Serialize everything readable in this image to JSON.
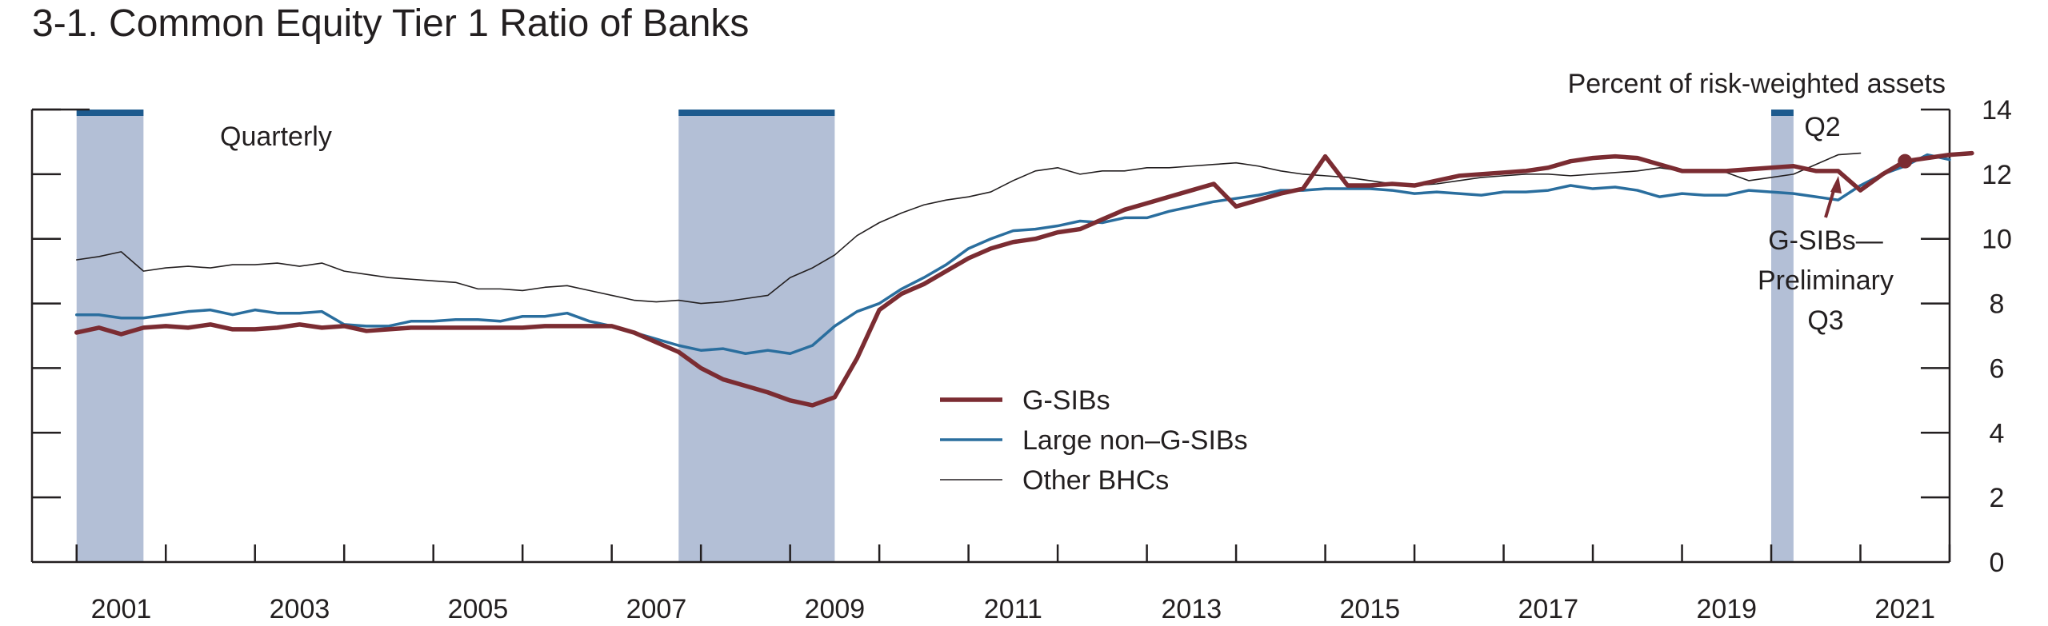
{
  "chart_data": {
    "type": "line",
    "title": "3-1. Common Equity Tier 1 Ratio of Banks",
    "frequency_label": "Quarterly",
    "ylabel": "Percent of risk-weighted assets",
    "ylim": [
      0,
      14
    ],
    "y_ticks": [
      "0",
      "2",
      "4",
      "6",
      "8",
      "10",
      "12",
      "14"
    ],
    "x_ticks": [
      "2001",
      "2003",
      "2005",
      "2007",
      "2009",
      "2011",
      "2013",
      "2015",
      "2017",
      "2019",
      "2021"
    ],
    "grid": false,
    "legend_placement": "center-bottom",
    "recessions": [
      {
        "start": 2001.0,
        "end": 2001.75
      },
      {
        "start": 2007.75,
        "end": 2009.5
      },
      {
        "start": 2020.0,
        "end": 2020.25
      }
    ],
    "colors": {
      "g_sibs": "#7b2c32",
      "large": "#2a6e9e",
      "other": "#231f20",
      "recession": "#b3bfd6",
      "recession_bar": "#1d5a8e"
    },
    "series": [
      {
        "name": "G-SIBs",
        "x_start": 2001.0,
        "x_step": 0.25,
        "values": [
          7.1,
          7.25,
          7.05,
          7.25,
          7.3,
          7.25,
          7.35,
          7.2,
          7.2,
          7.25,
          7.35,
          7.25,
          7.3,
          7.15,
          7.2,
          7.25,
          7.25,
          7.25,
          7.25,
          7.25,
          7.25,
          7.3,
          7.3,
          7.3,
          7.3,
          7.1,
          6.8,
          6.5,
          6.0,
          5.65,
          5.45,
          5.25,
          5.0,
          4.85,
          5.1,
          6.3,
          7.8,
          8.3,
          8.6,
          9.0,
          9.4,
          9.7,
          9.9,
          10.0,
          10.2,
          10.3,
          10.6,
          10.9,
          11.1,
          11.3,
          11.5,
          11.7,
          11.0,
          11.2,
          11.4,
          11.55,
          12.55,
          11.65,
          11.65,
          11.7,
          11.65,
          11.8,
          11.95,
          12.0,
          12.05,
          12.1,
          12.2,
          12.4,
          12.5,
          12.55,
          12.5,
          12.3,
          12.1,
          12.1,
          12.1,
          12.15,
          12.2,
          12.25,
          12.1,
          12.1,
          11.5,
          12.0,
          12.4,
          12.5,
          12.6,
          12.65
        ],
        "annotation": "Q2"
      },
      {
        "name": "Large non–G-SIBs",
        "x_start": 2001.0,
        "x_step": 0.25,
        "values": [
          7.65,
          7.65,
          7.55,
          7.55,
          7.65,
          7.75,
          7.8,
          7.65,
          7.8,
          7.7,
          7.7,
          7.75,
          7.35,
          7.3,
          7.3,
          7.45,
          7.45,
          7.5,
          7.5,
          7.45,
          7.6,
          7.6,
          7.7,
          7.45,
          7.3,
          7.1,
          6.9,
          6.7,
          6.55,
          6.6,
          6.45,
          6.55,
          6.45,
          6.7,
          7.3,
          7.75,
          8.0,
          8.45,
          8.8,
          9.2,
          9.7,
          10.0,
          10.25,
          10.3,
          10.4,
          10.55,
          10.5,
          10.65,
          10.65,
          10.85,
          11.0,
          11.15,
          11.25,
          11.35,
          11.5,
          11.5,
          11.55,
          11.55,
          11.55,
          11.5,
          11.4,
          11.45,
          11.4,
          11.35,
          11.45,
          11.45,
          11.5,
          11.65,
          11.55,
          11.6,
          11.5,
          11.3,
          11.4,
          11.35,
          11.35,
          11.5,
          11.45,
          11.4,
          11.3,
          11.2,
          11.65,
          12.0,
          12.25,
          12.6,
          12.45
        ]
      },
      {
        "name": "Other BHCs",
        "x_start": 2001.0,
        "x_step": 0.25,
        "values": [
          9.35,
          9.45,
          9.6,
          9.0,
          9.1,
          9.15,
          9.1,
          9.2,
          9.2,
          9.25,
          9.15,
          9.25,
          9.0,
          8.9,
          8.8,
          8.75,
          8.7,
          8.65,
          8.45,
          8.45,
          8.4,
          8.5,
          8.55,
          8.4,
          8.25,
          8.1,
          8.05,
          8.1,
          8.0,
          8.05,
          8.15,
          8.25,
          8.8,
          9.1,
          9.5,
          10.1,
          10.5,
          10.8,
          11.05,
          11.2,
          11.3,
          11.45,
          11.8,
          12.1,
          12.2,
          12.0,
          12.1,
          12.1,
          12.2,
          12.2,
          12.25,
          12.3,
          12.35,
          12.25,
          12.1,
          12.0,
          11.95,
          11.9,
          11.8,
          11.7,
          11.65,
          11.7,
          11.8,
          11.9,
          11.95,
          12.0,
          12.0,
          11.95,
          12.0,
          12.05,
          12.1,
          12.2,
          12.1,
          12.1,
          12.05,
          11.8,
          11.9,
          12.0,
          12.3,
          12.6,
          12.65
        ]
      }
    ],
    "preliminary_point": {
      "name": "G-SIBs—Preliminary Q3",
      "x": 2021.5,
      "value": 12.4
    },
    "preliminary_label_lines": [
      "G-SIBs—",
      "Preliminary",
      "Q3"
    ]
  }
}
